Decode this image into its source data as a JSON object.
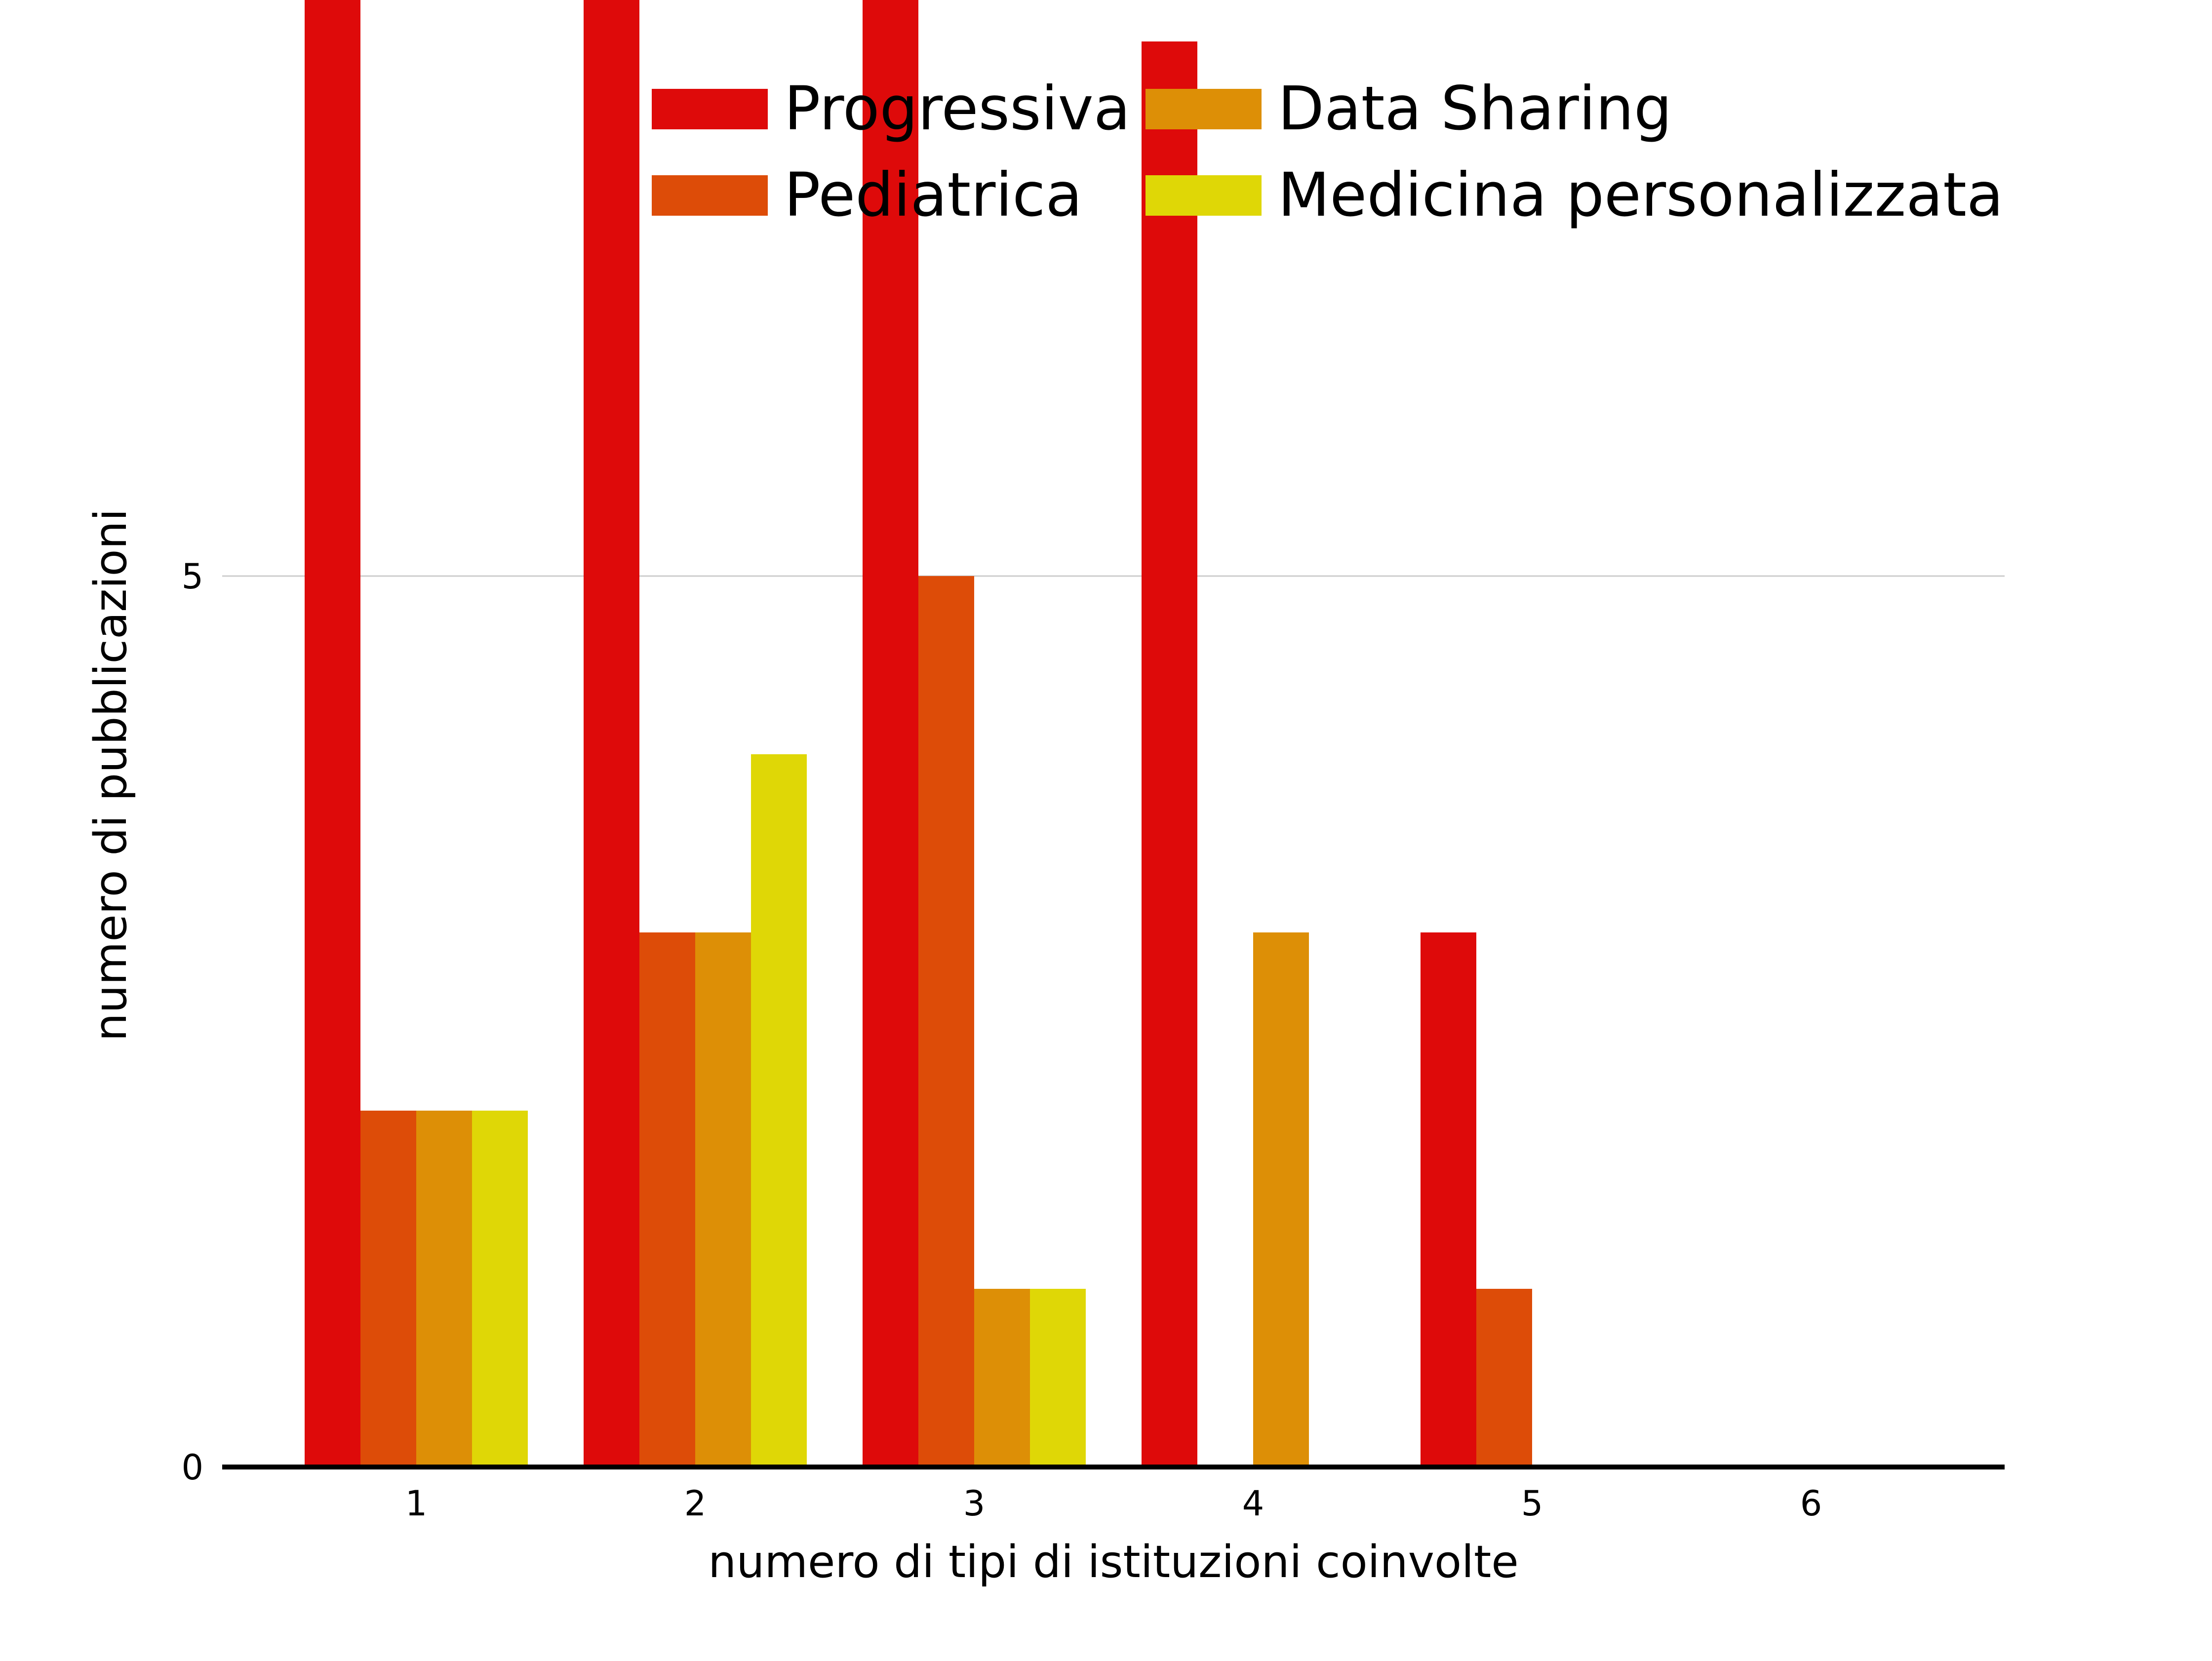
{
  "chart_data": {
    "type": "bar",
    "title": "",
    "xlabel": "numero di tipi di istituzioni coinvolte",
    "ylabel": "numero di pubblicazioni",
    "categories": [
      "1",
      "2",
      "3",
      "4",
      "5",
      "6"
    ],
    "ylim": [
      0,
      37
    ],
    "yticks": [
      0,
      5,
      10,
      15,
      20,
      25,
      30,
      35
    ],
    "grid": "horizontal",
    "legend_position": "top",
    "series": [
      {
        "name": "Progressiva",
        "color": "#de0a0a",
        "values": [
          22,
          37,
          13,
          8,
          3,
          0
        ]
      },
      {
        "name": "Pediatrica",
        "color": "#dd4c08",
        "values": [
          2,
          3,
          5,
          0,
          1,
          0
        ]
      },
      {
        "name": "Data Sharing",
        "color": "#dd8f06",
        "values": [
          2,
          3,
          1,
          3,
          0,
          0
        ]
      },
      {
        "name": "Medicina personalizzata",
        "color": "#dfd706",
        "values": [
          2,
          4,
          1,
          0,
          0,
          0
        ]
      }
    ]
  }
}
